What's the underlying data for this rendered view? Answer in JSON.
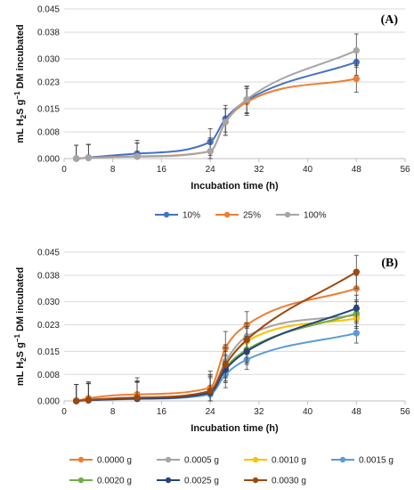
{
  "chart_data": [
    {
      "type": "line",
      "panel_label": "(A)",
      "xlabel": "Incubation time (h)",
      "ylabel": "mL H2S g⁻¹ DM incubated",
      "ylabel_parts": {
        "pre": "mL H",
        "sub": "2",
        "mid": "S g",
        "sup": "−1",
        "post": " DM incubated"
      },
      "x_ticks": [
        "0",
        "8",
        "16",
        "24",
        "32",
        "40",
        "48",
        "56"
      ],
      "y_ticks": [
        "0.000",
        "0.008",
        "0.015",
        "0.023",
        "0.030",
        "0.038",
        "0.045"
      ],
      "xlim": [
        0,
        56
      ],
      "ylim": [
        0,
        0.045
      ],
      "grid": "horizontal",
      "legend_position": "bottom",
      "x": [
        2,
        4,
        12,
        24,
        26.5,
        30,
        48
      ],
      "series": [
        {
          "name": "10%",
          "color": "#4472C4",
          "values": [
            0.0,
            0.0003,
            0.0015,
            0.005,
            0.012,
            0.0175,
            0.029
          ],
          "errors": [
            0.004,
            0.004,
            0.004,
            0.004,
            0.004,
            0.004,
            0.004
          ]
        },
        {
          "name": "25%",
          "color": "#ED7D31",
          "values": [
            0.0,
            0.0002,
            0.0007,
            0.0022,
            0.011,
            0.017,
            0.024
          ],
          "errors": [
            0.004,
            0.004,
            0.004,
            0.004,
            0.004,
            0.004,
            0.004
          ]
        },
        {
          "name": "100%",
          "color": "#A5A5A5",
          "values": [
            0.0,
            0.0002,
            0.0006,
            0.0022,
            0.011,
            0.0178,
            0.0325
          ],
          "errors": [
            0.004,
            0.004,
            0.004,
            0.004,
            0.004,
            0.004,
            0.005
          ]
        }
      ]
    },
    {
      "type": "line",
      "panel_label": "(B)",
      "xlabel": "Incubation time (h)",
      "ylabel": "mL H2S g⁻¹ DM incubated",
      "ylabel_parts": {
        "pre": "mL H",
        "sub": "2",
        "mid": "S g",
        "sup": "−1",
        "post": " DM incubated"
      },
      "x_ticks": [
        "0",
        "8",
        "16",
        "24",
        "32",
        "40",
        "48",
        "56"
      ],
      "y_ticks": [
        "0.000",
        "0.008",
        "0.015",
        "0.023",
        "0.030",
        "0.038",
        "0.045"
      ],
      "xlim": [
        0,
        56
      ],
      "ylim": [
        0,
        0.045
      ],
      "grid": "horizontal",
      "legend_position": "bottom",
      "x": [
        2,
        4,
        12,
        24,
        26.5,
        30,
        48
      ],
      "series": [
        {
          "name": "0.0000 g",
          "color": "#ED7D31",
          "values": [
            0.0,
            0.0008,
            0.002,
            0.004,
            0.016,
            0.023,
            0.034
          ],
          "errors": [
            0.005,
            0.005,
            0.005,
            0.005,
            0.005,
            0.004,
            0.004
          ]
        },
        {
          "name": "0.0005 g",
          "color": "#A5A5A5",
          "values": [
            0.0,
            0.0004,
            0.001,
            0.003,
            0.012,
            0.0195,
            0.026
          ],
          "errors": [
            0.005,
            0.005,
            0.005,
            0.005,
            0.005,
            0.004,
            0.004
          ]
        },
        {
          "name": "0.0010 g",
          "color": "#FFC000",
          "values": [
            0.0,
            0.0003,
            0.0008,
            0.0025,
            0.011,
            0.018,
            0.025
          ],
          "errors": [
            0.005,
            0.005,
            0.005,
            0.005,
            0.005,
            0.004,
            0.004
          ]
        },
        {
          "name": "0.0015 g",
          "color": "#5B9BD5",
          "values": [
            0.0,
            0.0002,
            0.0006,
            0.002,
            0.008,
            0.0125,
            0.0205
          ],
          "errors": [
            0.005,
            0.005,
            0.005,
            0.005,
            0.004,
            0.003,
            0.003
          ]
        },
        {
          "name": "0.0020 g",
          "color": "#70AD47",
          "values": [
            0.0,
            0.0003,
            0.0008,
            0.0025,
            0.01,
            0.0155,
            0.0265
          ],
          "errors": [
            0.005,
            0.005,
            0.005,
            0.005,
            0.004,
            0.004,
            0.004
          ]
        },
        {
          "name": "0.0025 g",
          "color": "#264478",
          "values": [
            0.0,
            0.0002,
            0.0007,
            0.0025,
            0.0095,
            0.015,
            0.028
          ],
          "errors": [
            0.005,
            0.005,
            0.005,
            0.005,
            0.004,
            0.004,
            0.004
          ]
        },
        {
          "name": "0.0030 g",
          "color": "#9E480E",
          "values": [
            0.0,
            0.0003,
            0.001,
            0.003,
            0.011,
            0.0185,
            0.039
          ],
          "errors": [
            0.005,
            0.005,
            0.005,
            0.005,
            0.004,
            0.004,
            0.005
          ]
        }
      ]
    }
  ]
}
